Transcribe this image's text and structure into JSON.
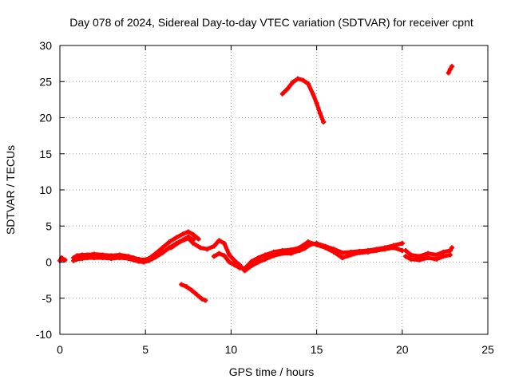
{
  "chart_data": {
    "type": "scatter",
    "title": "Day 078 of 2024, Sidereal Day-to-day VTEC variation (SDTVAR) for receiver cpnt",
    "xlabel": "GPS time / hours",
    "ylabel": "SDTVAR / TECUs",
    "xlim": [
      0,
      25
    ],
    "ylim": [
      -10,
      30
    ],
    "xticks": [
      0,
      5,
      10,
      15,
      20,
      25
    ],
    "yticks": [
      -10,
      -5,
      0,
      5,
      10,
      15,
      20,
      25,
      30
    ],
    "grid": true,
    "legend": "none",
    "marker_color": "#ff0000",
    "series": [
      {
        "name": "segment-1",
        "x": [
          0.0,
          0.1,
          0.2,
          0.3
        ],
        "y": [
          0.2,
          0.6,
          0.4,
          0.3
        ]
      },
      {
        "name": "segment-2",
        "x": [
          0.8,
          1.0,
          1.3,
          1.6,
          2.0,
          2.5,
          3.0,
          3.5,
          4.0,
          4.3,
          4.6,
          4.9,
          5.2,
          5.6,
          6.0,
          6.4,
          6.8,
          7.2,
          7.5,
          7.8,
          8.1
        ],
        "y": [
          0.6,
          0.9,
          1.0,
          1.0,
          1.1,
          1.0,
          0.9,
          1.0,
          0.8,
          0.6,
          0.4,
          0.3,
          0.5,
          1.2,
          2.0,
          2.8,
          3.4,
          3.9,
          4.2,
          3.8,
          3.2
        ]
      },
      {
        "name": "segment-3",
        "x": [
          0.8,
          1.0,
          1.3,
          1.6,
          2.0,
          2.5,
          3.0,
          3.5,
          4.0,
          4.3,
          4.6,
          4.9,
          5.2,
          5.6,
          6.0,
          6.4,
          6.8,
          7.2,
          7.5,
          7.8
        ],
        "y": [
          0.2,
          0.4,
          0.5,
          0.6,
          0.6,
          0.6,
          0.5,
          0.6,
          0.5,
          0.3,
          0.1,
          0.0,
          0.2,
          0.7,
          1.3,
          2.0,
          2.6,
          3.1,
          3.5,
          3.1
        ]
      },
      {
        "name": "segment-4",
        "x": [
          6.5,
          7.0,
          7.5,
          7.8,
          8.2,
          8.6,
          9.0,
          9.3,
          9.6,
          9.9,
          10.2,
          10.5,
          10.8,
          11.2,
          11.6,
          12.0,
          12.5,
          13.0,
          13.5,
          13.8,
          14.0,
          14.3,
          14.6,
          15.0,
          15.5,
          16.0,
          16.5,
          17.0,
          17.5,
          18.0,
          18.5,
          19.0,
          19.5,
          20.0
        ],
        "y": [
          2.0,
          2.8,
          3.3,
          2.6,
          2.0,
          1.8,
          2.2,
          3.0,
          2.6,
          1.0,
          0.2,
          -0.4,
          -1.2,
          -0.5,
          0.0,
          0.4,
          0.9,
          1.2,
          1.2,
          1.5,
          1.6,
          1.9,
          2.4,
          2.6,
          2.2,
          1.8,
          1.3,
          1.4,
          1.5,
          1.6,
          1.8,
          2.0,
          2.3,
          2.6
        ]
      },
      {
        "name": "segment-5",
        "x": [
          9.0,
          9.3,
          9.6,
          9.9,
          10.2,
          10.5,
          10.8,
          11.2,
          11.6,
          12.0,
          12.5,
          13.0,
          13.5,
          14.0,
          14.5,
          15.0,
          15.5,
          16.0,
          16.5,
          17.0,
          17.5,
          18.0,
          18.5,
          19.0,
          19.5,
          20.0
        ],
        "y": [
          0.8,
          1.2,
          0.9,
          0.0,
          -0.4,
          -0.8,
          -0.9,
          0.1,
          0.6,
          1.0,
          1.4,
          1.6,
          1.7,
          2.0,
          2.8,
          2.4,
          2.0,
          1.4,
          0.6,
          1.0,
          1.3,
          1.4,
          1.6,
          1.8,
          2.0,
          1.6
        ]
      },
      {
        "name": "segment-6",
        "x": [
          20.2,
          20.5,
          21.0,
          21.5,
          22.0,
          22.4,
          22.8,
          22.9
        ],
        "y": [
          1.6,
          1.0,
          0.8,
          1.2,
          1.0,
          1.4,
          1.6,
          2.0
        ]
      },
      {
        "name": "segment-7",
        "x": [
          20.2,
          20.5,
          21.0,
          21.5,
          22.0,
          22.4,
          22.8
        ],
        "y": [
          0.8,
          0.4,
          0.3,
          0.6,
          0.4,
          0.8,
          1.0
        ]
      },
      {
        "name": "segment-8",
        "x": [
          7.1,
          7.4,
          7.7,
          8.0,
          8.3,
          8.5
        ],
        "y": [
          -3.1,
          -3.4,
          -3.9,
          -4.5,
          -5.1,
          -5.3
        ]
      },
      {
        "name": "segment-9",
        "x": [
          13.0,
          13.3,
          13.6,
          13.9,
          14.2,
          14.5,
          14.8,
          15.0,
          15.2,
          15.4
        ],
        "y": [
          23.3,
          24.0,
          24.9,
          25.4,
          25.2,
          24.7,
          23.2,
          22.0,
          20.6,
          19.4
        ]
      },
      {
        "name": "segment-10",
        "x": [
          22.7,
          22.8,
          22.9
        ],
        "y": [
          26.2,
          26.7,
          27.1
        ]
      }
    ]
  }
}
